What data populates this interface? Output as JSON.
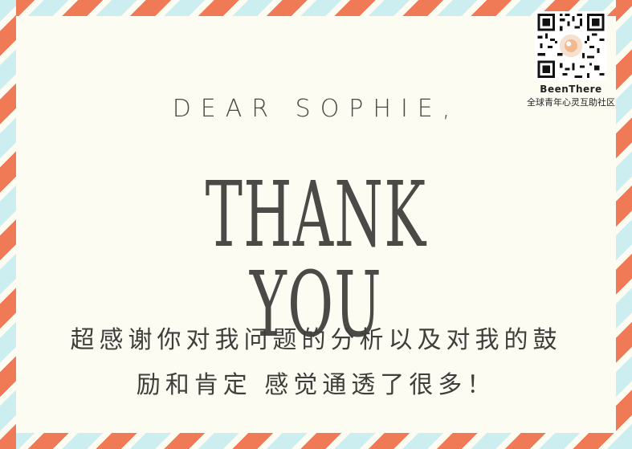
{
  "card": {
    "greeting": "DEAR SOPHIE,",
    "headline": "THANK YOU",
    "message_line1": "超感谢你对我问题的分析以及对我的鼓",
    "message_line2": "励和肯定 感觉通透了很多！"
  },
  "badge": {
    "qr_icon": "qr-code-icon",
    "brand": "BeenThere",
    "tagline": "全球青年心灵互助社区"
  },
  "colors": {
    "background": "#fdfcf3",
    "stripe_red": "#ef7a55",
    "stripe_blue": "#cdeef0",
    "text": "#4b4a46"
  }
}
